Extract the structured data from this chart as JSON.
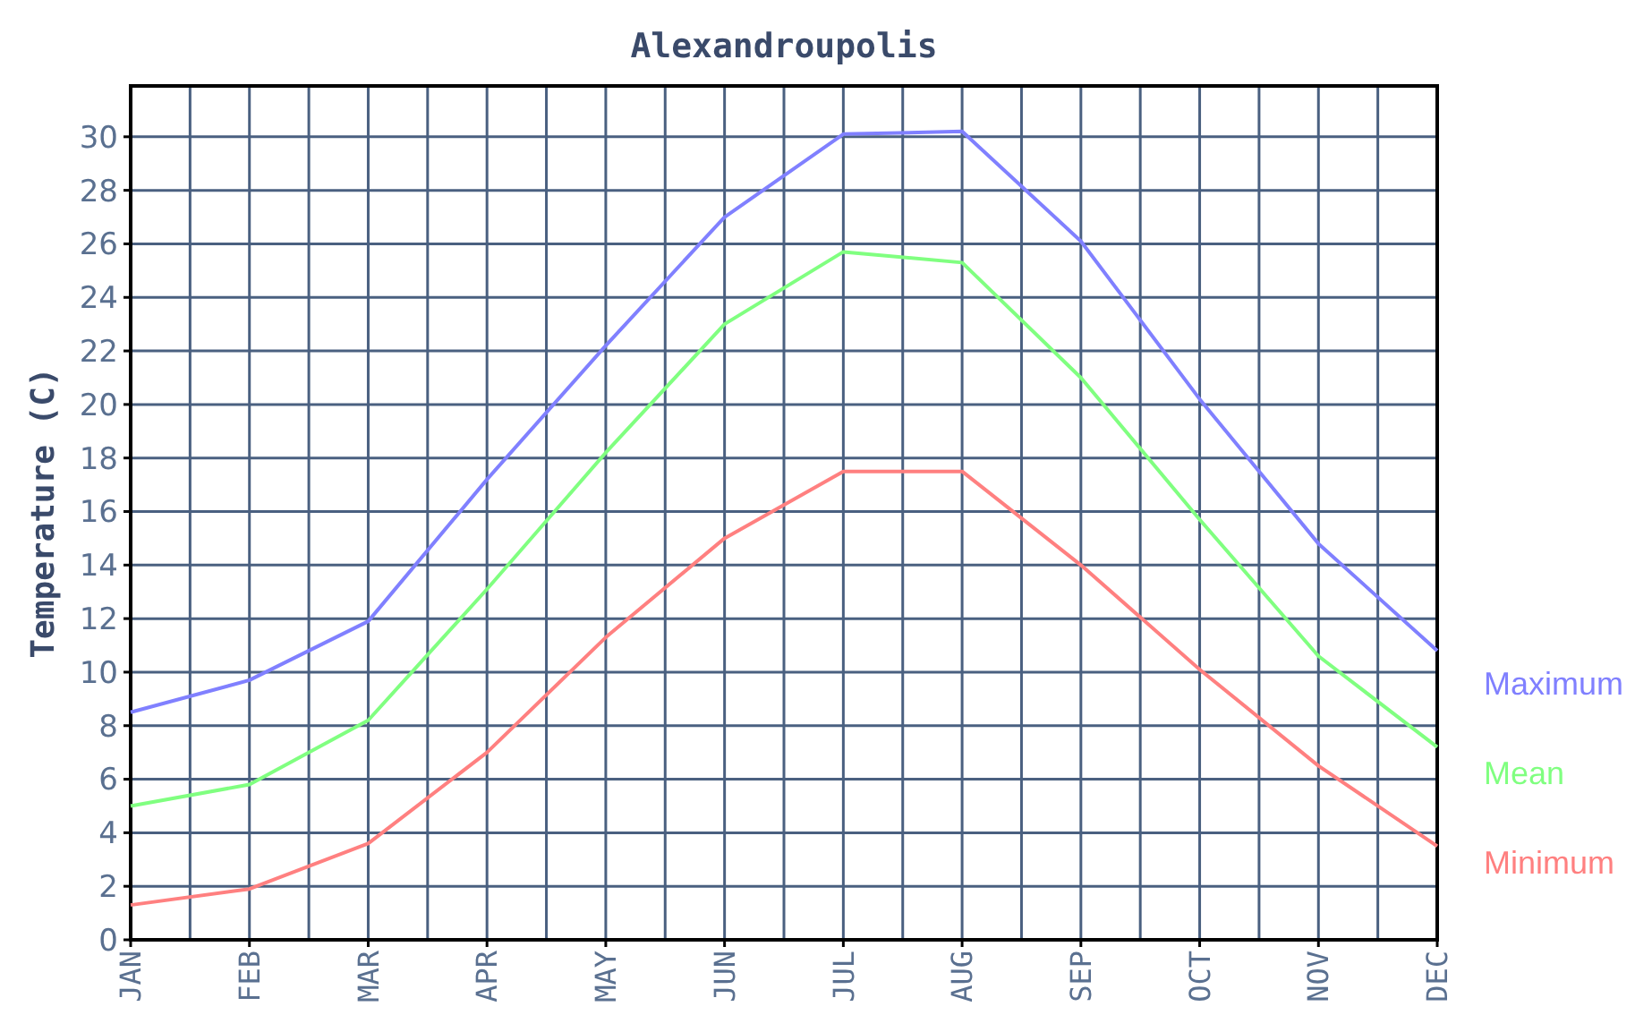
{
  "chart_data": {
    "type": "line",
    "title": "Alexandroupolis",
    "ylabel": "Temperature (C)",
    "categories": [
      "JAN",
      "FEB",
      "MAR",
      "APR",
      "MAY",
      "JUN",
      "JUL",
      "AUG",
      "SEP",
      "OCT",
      "NOV",
      "DEC"
    ],
    "series": [
      {
        "name": "Maximum",
        "color": "#8080ff",
        "values": [
          8.5,
          9.7,
          11.9,
          17.2,
          22.2,
          27.0,
          30.1,
          30.2,
          26.1,
          20.2,
          14.8,
          10.8
        ]
      },
      {
        "name": "Mean",
        "color": "#80ff80",
        "values": [
          5.0,
          5.8,
          8.2,
          13.1,
          18.2,
          23.0,
          25.7,
          25.3,
          21.0,
          15.7,
          10.6,
          7.2
        ]
      },
      {
        "name": "Minimum",
        "color": "#ff8080",
        "values": [
          1.3,
          1.9,
          3.6,
          7.0,
          11.3,
          15.0,
          17.5,
          17.5,
          14.0,
          10.1,
          6.5,
          3.5
        ]
      }
    ],
    "ylim": [
      0,
      31.9
    ],
    "yticks": [
      0,
      2,
      4,
      6,
      8,
      10,
      12,
      14,
      16,
      18,
      20,
      22,
      24,
      26,
      28,
      30
    ],
    "grid": true,
    "legend": "right",
    "marker": "none",
    "line_style": "solid"
  }
}
